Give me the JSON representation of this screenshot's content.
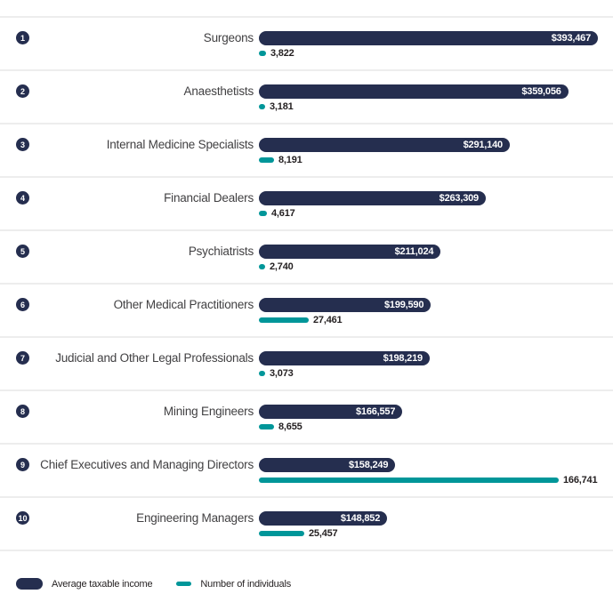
{
  "legend": {
    "income_label": "Average taxable income",
    "individuals_label": "Number of individuals"
  },
  "colors": {
    "navy": "#252e4f",
    "teal": "#009699",
    "separator": "#ededed",
    "occupation_label_text": "#414042",
    "count_text": "#231f20",
    "income_value_text": "#ffffff"
  },
  "rows": [
    {
      "rank": "1",
      "label": "Surgeons",
      "income_label": "$393,467",
      "income_value": 393467,
      "individuals_label": "3,822",
      "individuals_value": 3822
    },
    {
      "rank": "2",
      "label": "Anaesthetists",
      "income_label": "$359,056",
      "income_value": 359056,
      "individuals_label": "3,181",
      "individuals_value": 3181
    },
    {
      "rank": "3",
      "label": "Internal Medicine Specialists",
      "income_label": "$291,140",
      "income_value": 291140,
      "individuals_label": "8,191",
      "individuals_value": 8191
    },
    {
      "rank": "4",
      "label": "Financial Dealers",
      "income_label": "$263,309",
      "income_value": 263309,
      "individuals_label": "4,617",
      "individuals_value": 4617
    },
    {
      "rank": "5",
      "label": "Psychiatrists",
      "income_label": "$211,024",
      "income_value": 211024,
      "individuals_label": "2,740",
      "individuals_value": 2740
    },
    {
      "rank": "6",
      "label": "Other Medical Practitioners",
      "income_label": "$199,590",
      "income_value": 199590,
      "individuals_label": "27,461",
      "individuals_value": 27461
    },
    {
      "rank": "7",
      "label": "Judicial and Other Legal Professionals",
      "income_label": "$198,219",
      "income_value": 198219,
      "individuals_label": "3,073",
      "individuals_value": 3073
    },
    {
      "rank": "8",
      "label": "Mining Engineers",
      "income_label": "$166,557",
      "income_value": 166557,
      "individuals_label": "8,655",
      "individuals_value": 8655
    },
    {
      "rank": "9",
      "label": "Chief Executives and Managing Directors",
      "income_label": "$158,249",
      "income_value": 158249,
      "individuals_label": "166,741",
      "individuals_value": 166741
    },
    {
      "rank": "10",
      "label": "Engineering Managers",
      "income_label": "$148,852",
      "income_value": 148852,
      "individuals_label": "25,457",
      "individuals_value": 25457
    }
  ],
  "chart_data": {
    "type": "bar",
    "orientation": "horizontal",
    "title": "",
    "categories": [
      "Surgeons",
      "Anaesthetists",
      "Internal Medicine Specialists",
      "Financial Dealers",
      "Psychiatrists",
      "Other Medical Practitioners",
      "Judicial and Other Legal Professionals",
      "Mining Engineers",
      "Chief Executives and Managing Directors",
      "Engineering Managers"
    ],
    "ranks": [
      1,
      2,
      3,
      4,
      5,
      6,
      7,
      8,
      9,
      10
    ],
    "series": [
      {
        "name": "Average taxable income",
        "color": "#252e4f",
        "value_format": "currency",
        "values": [
          393467,
          359056,
          291140,
          263309,
          211024,
          199590,
          198219,
          166557,
          158249,
          148852
        ]
      },
      {
        "name": "Number of individuals",
        "color": "#009699",
        "value_format": "number",
        "values": [
          3822,
          3181,
          8191,
          4617,
          2740,
          27461,
          3073,
          8655,
          166741,
          25457
        ]
      }
    ],
    "legend_position": "bottom",
    "grid": false,
    "value_labels": {
      "income": "inside bar end, white",
      "individuals": "right of bar, dark"
    }
  }
}
